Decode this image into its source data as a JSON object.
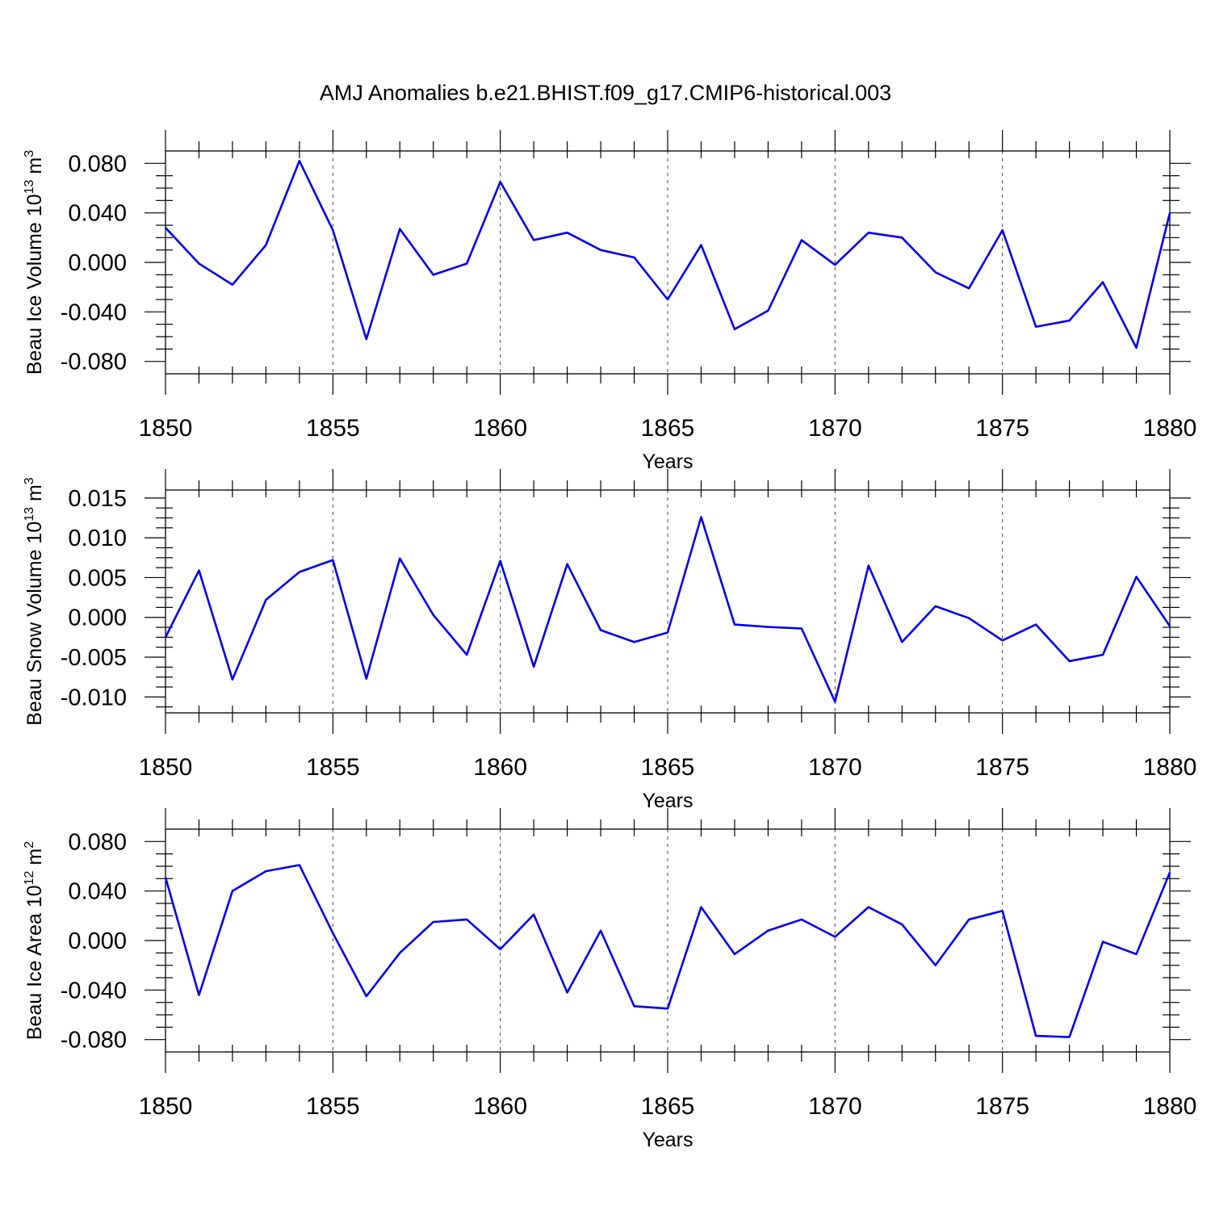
{
  "figure": {
    "title": "AMJ Anomalies b.e21.BHIST.f09_g17.CMIP6-historical.003",
    "line_color": "#0000ee"
  },
  "chart_data": [
    {
      "type": "line",
      "title": "",
      "xlabel": "Years",
      "ylabel_main": "Beau Ice Volume 10",
      "ylabel_exp": "13",
      "ylabel_unit": " m",
      "ylabel_unit_exp": "3",
      "xlim": [
        1850,
        1880
      ],
      "ylim": [
        -0.09,
        0.09
      ],
      "x_ticks": [
        1850,
        1855,
        1860,
        1865,
        1870,
        1875,
        1880
      ],
      "x_tick_labels": [
        "1850",
        "1855",
        "1860",
        "1865",
        "1870",
        "1875",
        "1880"
      ],
      "y_ticks": [
        -0.08,
        -0.04,
        0.0,
        0.04,
        0.08
      ],
      "y_tick_labels": [
        "-0.080",
        "-0.040",
        "0.000",
        "0.040",
        "0.080"
      ],
      "grid": "dashed vertical at major x ticks",
      "series": [
        {
          "x": [
            1850,
            1851,
            1852,
            1853,
            1854,
            1855,
            1856,
            1857,
            1858,
            1859,
            1860,
            1861,
            1862,
            1863,
            1864,
            1865,
            1866,
            1867,
            1868,
            1869,
            1870,
            1871,
            1872,
            1873,
            1874,
            1875,
            1876,
            1877,
            1878,
            1879,
            1880
          ],
          "values": [
            0.028,
            -0.001,
            -0.018,
            0.014,
            0.082,
            0.026,
            -0.062,
            0.027,
            -0.01,
            -0.001,
            0.065,
            0.018,
            0.024,
            0.01,
            0.004,
            -0.03,
            0.014,
            -0.054,
            -0.039,
            0.018,
            -0.002,
            0.024,
            0.02,
            -0.008,
            -0.021,
            0.026,
            -0.052,
            -0.047,
            -0.016,
            -0.069,
            0.04
          ]
        }
      ]
    },
    {
      "type": "line",
      "title": "",
      "xlabel": "Years",
      "ylabel_main": "Beau Snow Volume 10",
      "ylabel_exp": "13",
      "ylabel_unit": " m",
      "ylabel_unit_exp": "3",
      "xlim": [
        1850,
        1880
      ],
      "ylim": [
        -0.012,
        0.016
      ],
      "x_ticks": [
        1850,
        1855,
        1860,
        1865,
        1870,
        1875,
        1880
      ],
      "x_tick_labels": [
        "1850",
        "1855",
        "1860",
        "1865",
        "1870",
        "1875",
        "1880"
      ],
      "y_ticks": [
        -0.01,
        -0.005,
        0.0,
        0.005,
        0.01,
        0.015
      ],
      "y_tick_labels": [
        "-0.010",
        "-0.005",
        "0.000",
        "0.005",
        "0.010",
        "0.015"
      ],
      "grid": "dashed vertical at major x ticks",
      "series": [
        {
          "x": [
            1850,
            1851,
            1852,
            1853,
            1854,
            1855,
            1856,
            1857,
            1858,
            1859,
            1860,
            1861,
            1862,
            1863,
            1864,
            1865,
            1866,
            1867,
            1868,
            1869,
            1870,
            1871,
            1872,
            1873,
            1874,
            1875,
            1876,
            1877,
            1878,
            1879,
            1880
          ],
          "values": [
            -0.0025,
            0.0059,
            -0.0078,
            0.0022,
            0.0057,
            0.0072,
            -0.0077,
            0.0074,
            0.0003,
            -0.0047,
            0.0071,
            -0.0062,
            0.0067,
            -0.0016,
            -0.0031,
            -0.0019,
            0.0126,
            -0.0009,
            -0.0012,
            -0.0014,
            -0.0106,
            0.0065,
            -0.0031,
            0.0014,
            -0.0001,
            -0.0029,
            -0.0009,
            -0.0055,
            -0.0047,
            0.0051,
            -0.0011
          ]
        }
      ]
    },
    {
      "type": "line",
      "title": "",
      "xlabel": "Years",
      "ylabel_main": "Beau Ice Area 10",
      "ylabel_exp": "12",
      "ylabel_unit": " m",
      "ylabel_unit_exp": "2",
      "xlim": [
        1850,
        1880
      ],
      "ylim": [
        -0.09,
        0.09
      ],
      "x_ticks": [
        1850,
        1855,
        1860,
        1865,
        1870,
        1875,
        1880
      ],
      "x_tick_labels": [
        "1850",
        "1855",
        "1860",
        "1865",
        "1870",
        "1875",
        "1880"
      ],
      "y_ticks": [
        -0.08,
        -0.04,
        0.0,
        0.04,
        0.08
      ],
      "y_tick_labels": [
        "-0.080",
        "-0.040",
        "0.000",
        "0.040",
        "0.080"
      ],
      "grid": "dashed vertical at major x ticks",
      "series": [
        {
          "x": [
            1850,
            1851,
            1852,
            1853,
            1854,
            1855,
            1856,
            1857,
            1858,
            1859,
            1860,
            1861,
            1862,
            1863,
            1864,
            1865,
            1866,
            1867,
            1868,
            1869,
            1870,
            1871,
            1872,
            1873,
            1874,
            1875,
            1876,
            1877,
            1878,
            1879,
            1880
          ],
          "values": [
            0.051,
            -0.044,
            0.04,
            0.056,
            0.061,
            0.006,
            -0.045,
            -0.01,
            0.015,
            0.017,
            -0.007,
            0.021,
            -0.042,
            0.008,
            -0.053,
            -0.055,
            0.027,
            -0.011,
            0.008,
            0.017,
            0.003,
            0.027,
            0.013,
            -0.02,
            0.017,
            0.024,
            -0.077,
            -0.078,
            -0.001,
            -0.011,
            0.055
          ]
        }
      ]
    }
  ]
}
